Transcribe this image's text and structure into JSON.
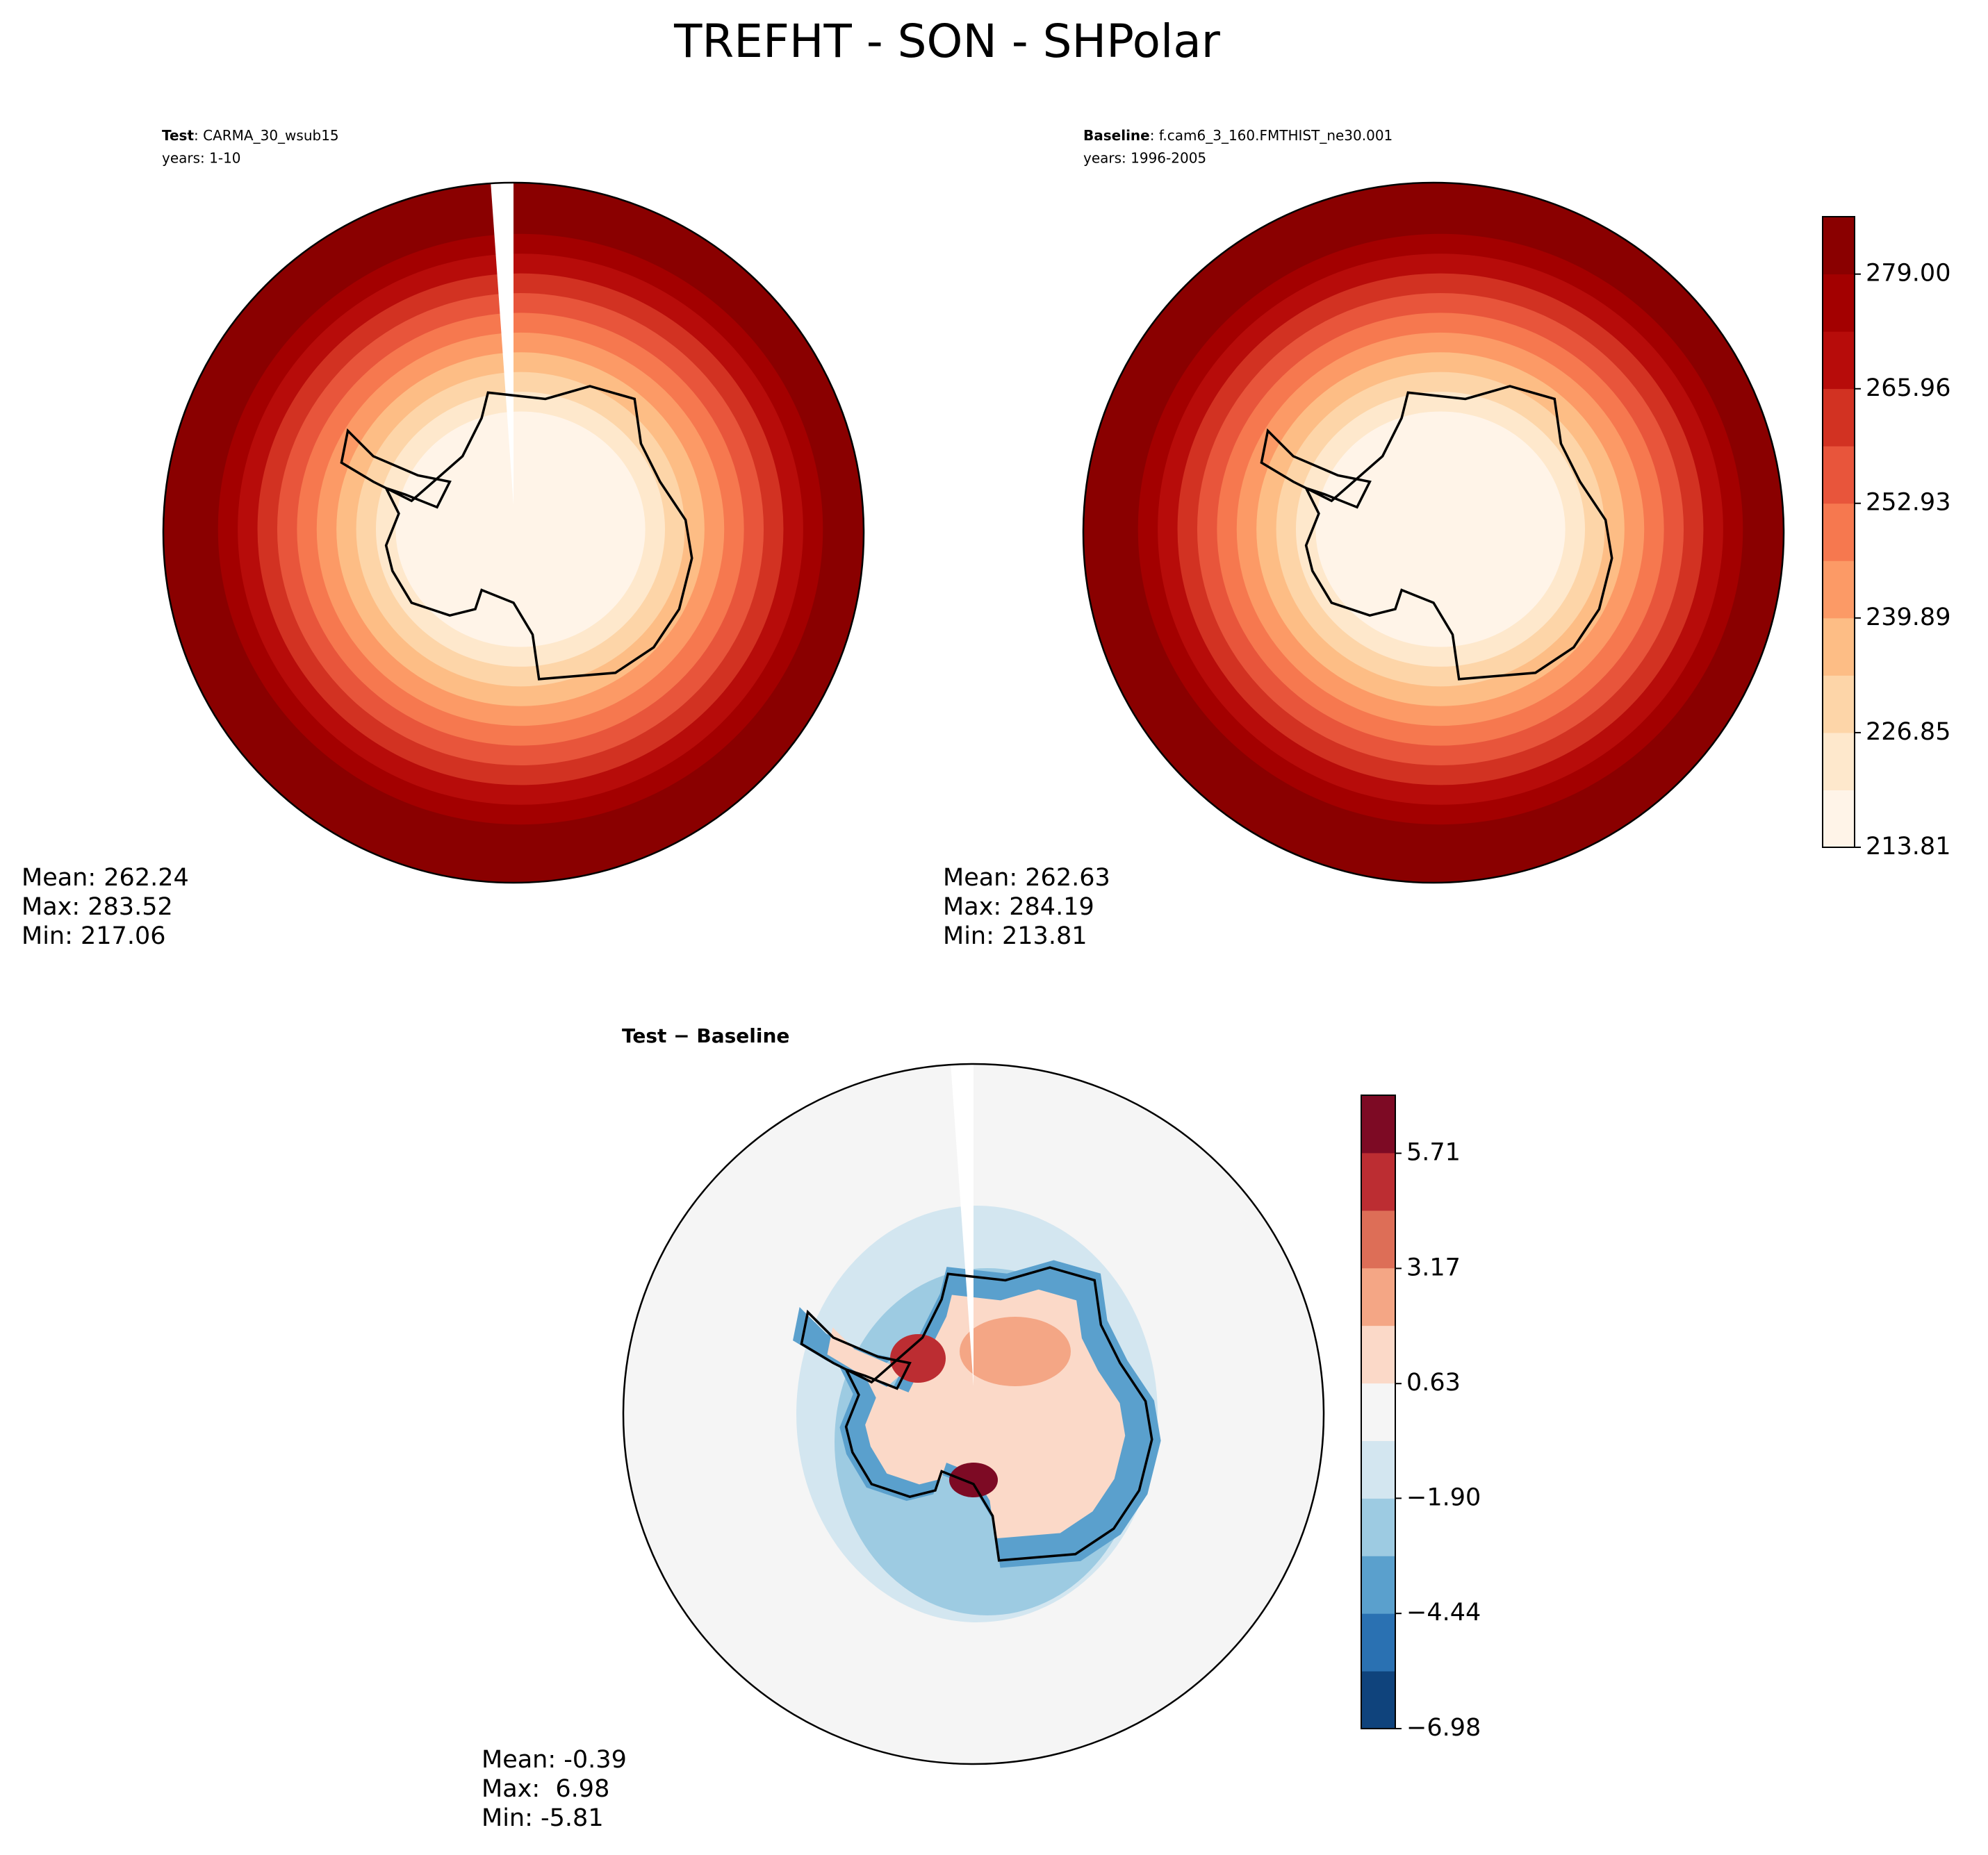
{
  "title": "TREFHT - SON - SHPolar",
  "panels": [
    {
      "label": "Test",
      "case": ": CARMA_30_wsub15",
      "years": "years: 1-10",
      "stats": [
        "Mean: 262.24",
        "Max: 283.52",
        "Min: 217.06"
      ]
    },
    {
      "label": "Baseline",
      "case": ": f.cam6_3_160.FMTHIST_ne30.001",
      "years": "years: 1996-2005",
      "stats": [
        "Mean: 262.63",
        "Max: 284.19",
        "Min: 213.81"
      ]
    },
    {
      "label": "Test − Baseline",
      "stats": [
        "Mean: -0.39",
        "Max:  6.98",
        "Min: -5.81"
      ]
    }
  ],
  "colorbars": [
    {
      "clim": [
        213.81,
        285.53
      ],
      "ticks": [
        213.81,
        226.85,
        239.89,
        252.93,
        265.96,
        {
          "value": 279.0,
          "label": "279.00"
        }
      ],
      "colors": [
        "#fff4e8",
        "#fee8cc",
        "#fdd5a8",
        "#fdbd85",
        "#fc9a66",
        "#f6784f",
        "#e8553b",
        "#d23222",
        "#b70c0a",
        "#a30000",
        "#8a0000"
      ]
    },
    {
      "clim": [
        -6.98,
        6.99
      ],
      "ticks": [
        {
          "value": -6.98,
          "label": "−6.98"
        },
        {
          "value": -4.44,
          "label": "−4.44"
        },
        {
          "value": -1.9,
          "label": "−1.90"
        },
        0.63,
        3.17,
        5.71
      ],
      "colors": [
        "#0f437c",
        "#2a71b2",
        "#5aa0cd",
        "#9dcbe2",
        "#d3e6f0",
        "#f5f5f5",
        "#fbd9c8",
        "#f4a685",
        "#dd6e57",
        "#bc2d32",
        "#7d0a24"
      ]
    }
  ]
}
